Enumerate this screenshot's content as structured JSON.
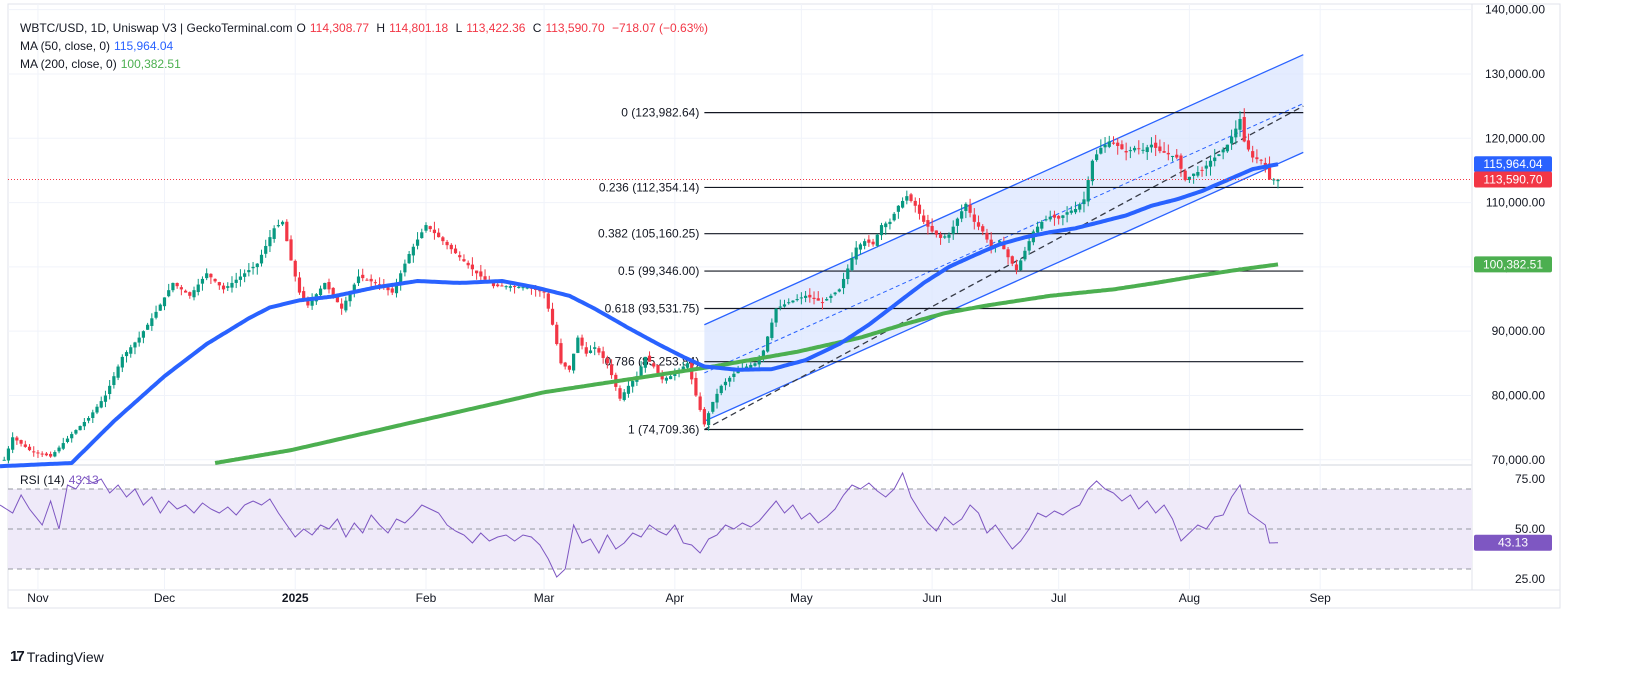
{
  "header": {
    "symbol": "WBTC/USD, 1D, Uniswap V3 | GeckoTerminal.com",
    "o_label": "O",
    "o_value": "114,308.77",
    "h_label": "H",
    "h_value": "114,801.18",
    "l_label": "L",
    "l_value": "113,422.36",
    "c_label": "C",
    "c_value": "113,590.70",
    "change": "−718.07 (−0.63%)",
    "ma50_label": "MA (50, close, 0)",
    "ma50_value": "115,964.04",
    "ma200_label": "MA (200, close, 0)",
    "ma200_value": "100,382.51",
    "rsi_label": "RSI (14)",
    "rsi_value": "43.13"
  },
  "footer": {
    "brand": "TradingView"
  },
  "colors": {
    "up": "#089981",
    "down": "#f23645",
    "ma50": "#2962ff",
    "ma200": "#4caf50",
    "rsi": "#7e57c2",
    "channel_fill": "#dbe5ff",
    "rsi_fill": "#efeaf9",
    "text": "#131722"
  },
  "chart_data": {
    "type": "candlestick",
    "price_axis": {
      "ticks": [
        "140,000.00",
        "130,000.00",
        "120,000.00",
        "110,000.00",
        "100,000.00",
        "90,000.00",
        "80,000.00",
        "70,000.00"
      ],
      "tick_values": [
        140000,
        130000,
        120000,
        110000,
        100000,
        90000,
        80000,
        70000
      ],
      "range": [
        69500,
        141500
      ]
    },
    "time_axis": {
      "labels": [
        "Nov",
        "Dec",
        "2025",
        "Feb",
        "Mar",
        "Apr",
        "May",
        "Jun",
        "Jul",
        "Aug",
        "Sep"
      ],
      "label_days": [
        0,
        30,
        61,
        92,
        120,
        151,
        181,
        212,
        242,
        273,
        304
      ],
      "range_days": [
        -9,
        340
      ]
    },
    "price_badges": {
      "ma50": "115,964.04",
      "last": "113,590.70",
      "ma200": "100,382.51"
    },
    "fibonacci": [
      {
        "level": "0",
        "label": "0 (123,982.64)",
        "value": 123982.64
      },
      {
        "level": "0.236",
        "label": "0.236 (112,354.14)",
        "value": 112354.14
      },
      {
        "level": "0.382",
        "label": "0.382 (105,160.25)",
        "value": 105160.25
      },
      {
        "level": "0.5",
        "label": "0.5 (99,346.00)",
        "value": 99346.0
      },
      {
        "level": "0.618",
        "label": "0.618 (93,531.75)",
        "value": 93531.75
      },
      {
        "level": "0.786",
        "label": "0.786 (85,253.84)",
        "value": 85253.84
      },
      {
        "level": "1",
        "label": "1 (74,709.36)",
        "value": 74709.36
      }
    ],
    "fib_start_day": 158,
    "fib_end_day": 300,
    "channel": {
      "upper": [
        [
          158,
          91000
        ],
        [
          300,
          133000
        ]
      ],
      "lower": [
        [
          158,
          76000
        ],
        [
          300,
          117800
        ]
      ],
      "mid": [
        [
          158,
          83500
        ],
        [
          300,
          125400
        ]
      ],
      "trend": [
        [
          158,
          74700
        ],
        [
          300,
          125000
        ]
      ]
    },
    "ohlc_anchors": [
      [
        -8,
        70000
      ],
      [
        -6,
        73500
      ],
      [
        -2,
        71500
      ],
      [
        3,
        70500
      ],
      [
        8,
        74000
      ],
      [
        12,
        76500
      ],
      [
        16,
        80000
      ],
      [
        20,
        86000
      ],
      [
        24,
        89000
      ],
      [
        28,
        93000
      ],
      [
        32,
        97500
      ],
      [
        36,
        95500
      ],
      [
        40,
        99000
      ],
      [
        44,
        96500
      ],
      [
        48,
        98500
      ],
      [
        52,
        100500
      ],
      [
        56,
        106000
      ],
      [
        58,
        107000
      ],
      [
        60,
        101000
      ],
      [
        62,
        96000
      ],
      [
        64,
        94000
      ],
      [
        68,
        97500
      ],
      [
        72,
        93500
      ],
      [
        76,
        98500
      ],
      [
        80,
        97500
      ],
      [
        84,
        96000
      ],
      [
        88,
        102000
      ],
      [
        92,
        106500
      ],
      [
        96,
        104000
      ],
      [
        100,
        101500
      ],
      [
        104,
        99000
      ],
      [
        108,
        97000
      ],
      [
        112,
        97000
      ],
      [
        116,
        96800
      ],
      [
        120,
        96000
      ],
      [
        122,
        91000
      ],
      [
        124,
        85000
      ],
      [
        126,
        84000
      ],
      [
        128,
        89000
      ],
      [
        130,
        86500
      ],
      [
        132,
        87500
      ],
      [
        135,
        85000
      ],
      [
        138,
        79500
      ],
      [
        140,
        81500
      ],
      [
        142,
        83000
      ],
      [
        144,
        86000
      ],
      [
        146,
        84500
      ],
      [
        148,
        82500
      ],
      [
        150,
        83000
      ],
      [
        154,
        85000
      ],
      [
        156,
        80000
      ],
      [
        158,
        75500
      ],
      [
        160,
        79000
      ],
      [
        162,
        81500
      ],
      [
        166,
        84000
      ],
      [
        170,
        85000
      ],
      [
        172,
        87000
      ],
      [
        175,
        93500
      ],
      [
        178,
        94500
      ],
      [
        182,
        95500
      ],
      [
        186,
        94500
      ],
      [
        190,
        96500
      ],
      [
        194,
        103000
      ],
      [
        196,
        104000
      ],
      [
        198,
        103500
      ],
      [
        200,
        106500
      ],
      [
        202,
        107000
      ],
      [
        204,
        109500
      ],
      [
        206,
        111000
      ],
      [
        208,
        109500
      ],
      [
        210,
        107000
      ],
      [
        212,
        105500
      ],
      [
        214,
        104500
      ],
      [
        216,
        105000
      ],
      [
        218,
        107500
      ],
      [
        220,
        109800
      ],
      [
        222,
        107000
      ],
      [
        224,
        105500
      ],
      [
        226,
        103000
      ],
      [
        228,
        104000
      ],
      [
        230,
        101500
      ],
      [
        232,
        99500
      ],
      [
        234,
        102500
      ],
      [
        236,
        105500
      ],
      [
        238,
        107000
      ],
      [
        240,
        107800
      ],
      [
        242,
        107500
      ],
      [
        244,
        108500
      ],
      [
        246,
        109000
      ],
      [
        248,
        110500
      ],
      [
        250,
        116500
      ],
      [
        252,
        118500
      ],
      [
        254,
        119500
      ],
      [
        256,
        118800
      ],
      [
        258,
        117800
      ],
      [
        260,
        118500
      ],
      [
        262,
        118200
      ],
      [
        264,
        119000
      ],
      [
        266,
        118000
      ],
      [
        268,
        117500
      ],
      [
        270,
        117000
      ],
      [
        272,
        113500
      ],
      [
        274,
        114500
      ],
      [
        276,
        115000
      ],
      [
        278,
        116500
      ],
      [
        280,
        117500
      ],
      [
        282,
        119000
      ],
      [
        284,
        121500
      ],
      [
        285,
        123000
      ],
      [
        286,
        119500
      ],
      [
        288,
        117000
      ],
      [
        290,
        116500
      ],
      [
        291,
        115800
      ],
      [
        292,
        113600
      ],
      [
        294,
        113590
      ]
    ],
    "ma50_anchors": [
      [
        -9,
        69000
      ],
      [
        8,
        69500
      ],
      [
        18,
        76000
      ],
      [
        30,
        83000
      ],
      [
        40,
        88000
      ],
      [
        50,
        92000
      ],
      [
        55,
        93700
      ],
      [
        62,
        94800
      ],
      [
        70,
        95400
      ],
      [
        80,
        96800
      ],
      [
        90,
        97800
      ],
      [
        100,
        97500
      ],
      [
        110,
        97800
      ],
      [
        118,
        96800
      ],
      [
        126,
        95500
      ],
      [
        132,
        93500
      ],
      [
        140,
        90500
      ],
      [
        147,
        88000
      ],
      [
        153,
        86000
      ],
      [
        158,
        84500
      ],
      [
        166,
        84000
      ],
      [
        174,
        84100
      ],
      [
        182,
        85500
      ],
      [
        190,
        88000
      ],
      [
        197,
        91000
      ],
      [
        204,
        94500
      ],
      [
        210,
        97500
      ],
      [
        216,
        100000
      ],
      [
        222,
        101800
      ],
      [
        228,
        103500
      ],
      [
        234,
        104600
      ],
      [
        240,
        105400
      ],
      [
        246,
        106000
      ],
      [
        252,
        107000
      ],
      [
        258,
        108000
      ],
      [
        264,
        109500
      ],
      [
        270,
        110500
      ],
      [
        276,
        111800
      ],
      [
        282,
        113500
      ],
      [
        288,
        115200
      ],
      [
        294,
        115964
      ]
    ],
    "ma200_anchors": [
      [
        42,
        69500
      ],
      [
        60,
        71500
      ],
      [
        80,
        74500
      ],
      [
        100,
        77500
      ],
      [
        120,
        80500
      ],
      [
        140,
        82500
      ],
      [
        160,
        84500
      ],
      [
        180,
        86800
      ],
      [
        195,
        89000
      ],
      [
        205,
        91000
      ],
      [
        215,
        92800
      ],
      [
        225,
        94000
      ],
      [
        240,
        95500
      ],
      [
        255,
        96500
      ],
      [
        265,
        97500
      ],
      [
        275,
        98600
      ],
      [
        285,
        99600
      ],
      [
        294,
        100382
      ]
    ],
    "rsi": {
      "ticks": [
        "75.00",
        "50.00",
        "25.00"
      ],
      "tick_values": [
        75,
        50,
        25
      ],
      "range": [
        22,
        82
      ],
      "upper_band": 70,
      "mid_band": 50,
      "lower_band": 30,
      "last": 43.13,
      "anchors": [
        [
          -9,
          62
        ],
        [
          -6,
          58
        ],
        [
          -4,
          67
        ],
        [
          -2,
          60
        ],
        [
          1,
          52
        ],
        [
          3,
          64
        ],
        [
          5,
          50
        ],
        [
          7,
          72
        ],
        [
          9,
          70
        ],
        [
          11,
          76
        ],
        [
          13,
          73
        ],
        [
          15,
          75
        ],
        [
          17,
          68
        ],
        [
          19,
          72
        ],
        [
          21,
          66
        ],
        [
          23,
          70
        ],
        [
          25,
          62
        ],
        [
          27,
          66
        ],
        [
          29,
          58
        ],
        [
          31,
          64
        ],
        [
          33,
          60
        ],
        [
          35,
          62
        ],
        [
          37,
          58
        ],
        [
          39,
          63
        ],
        [
          41,
          60
        ],
        [
          43,
          58
        ],
        [
          45,
          61
        ],
        [
          47,
          57
        ],
        [
          49,
          62
        ],
        [
          51,
          64
        ],
        [
          53,
          62
        ],
        [
          55,
          65
        ],
        [
          57,
          58
        ],
        [
          59,
          52
        ],
        [
          61,
          46
        ],
        [
          63,
          50
        ],
        [
          65,
          47
        ],
        [
          67,
          52
        ],
        [
          69,
          50
        ],
        [
          71,
          55
        ],
        [
          73,
          46
        ],
        [
          75,
          53
        ],
        [
          77,
          48
        ],
        [
          79,
          57
        ],
        [
          81,
          52
        ],
        [
          83,
          48
        ],
        [
          85,
          55
        ],
        [
          87,
          53
        ],
        [
          89,
          57
        ],
        [
          91,
          62
        ],
        [
          93,
          60
        ],
        [
          95,
          58
        ],
        [
          97,
          52
        ],
        [
          99,
          49
        ],
        [
          101,
          47
        ],
        [
          103,
          43
        ],
        [
          105,
          48
        ],
        [
          107,
          44
        ],
        [
          109,
          46
        ],
        [
          111,
          47
        ],
        [
          113,
          44
        ],
        [
          115,
          47
        ],
        [
          117,
          46
        ],
        [
          119,
          42
        ],
        [
          121,
          35
        ],
        [
          123,
          26
        ],
        [
          125,
          30
        ],
        [
          127,
          52
        ],
        [
          129,
          43
        ],
        [
          131,
          45
        ],
        [
          133,
          38
        ],
        [
          135,
          47
        ],
        [
          137,
          40
        ],
        [
          139,
          43
        ],
        [
          141,
          48
        ],
        [
          143,
          46
        ],
        [
          145,
          52
        ],
        [
          147,
          49
        ],
        [
          149,
          47
        ],
        [
          151,
          52
        ],
        [
          153,
          43
        ],
        [
          155,
          42
        ],
        [
          157,
          38
        ],
        [
          159,
          45
        ],
        [
          161,
          47
        ],
        [
          163,
          52
        ],
        [
          165,
          50
        ],
        [
          167,
          53
        ],
        [
          169,
          51
        ],
        [
          171,
          54
        ],
        [
          173,
          59
        ],
        [
          175,
          64
        ],
        [
          177,
          58
        ],
        [
          179,
          62
        ],
        [
          181,
          55
        ],
        [
          183,
          58
        ],
        [
          185,
          53
        ],
        [
          187,
          56
        ],
        [
          189,
          60
        ],
        [
          191,
          67
        ],
        [
          193,
          72
        ],
        [
          195,
          70
        ],
        [
          197,
          73
        ],
        [
          199,
          69
        ],
        [
          201,
          66
        ],
        [
          203,
          70
        ],
        [
          205,
          78
        ],
        [
          207,
          66
        ],
        [
          209,
          59
        ],
        [
          211,
          53
        ],
        [
          213,
          49
        ],
        [
          215,
          56
        ],
        [
          217,
          52
        ],
        [
          219,
          55
        ],
        [
          221,
          62
        ],
        [
          223,
          58
        ],
        [
          225,
          48
        ],
        [
          227,
          52
        ],
        [
          229,
          46
        ],
        [
          231,
          40
        ],
        [
          233,
          44
        ],
        [
          235,
          50
        ],
        [
          237,
          58
        ],
        [
          239,
          56
        ],
        [
          241,
          59
        ],
        [
          243,
          57
        ],
        [
          245,
          60
        ],
        [
          247,
          62
        ],
        [
          249,
          70
        ],
        [
          251,
          74
        ],
        [
          253,
          70
        ],
        [
          255,
          68
        ],
        [
          257,
          64
        ],
        [
          259,
          67
        ],
        [
          261,
          60
        ],
        [
          263,
          64
        ],
        [
          265,
          58
        ],
        [
          267,
          62
        ],
        [
          269,
          55
        ],
        [
          271,
          44
        ],
        [
          273,
          48
        ],
        [
          275,
          52
        ],
        [
          277,
          50
        ],
        [
          279,
          56
        ],
        [
          281,
          57
        ],
        [
          283,
          66
        ],
        [
          285,
          72
        ],
        [
          287,
          58
        ],
        [
          289,
          55
        ],
        [
          291,
          52
        ],
        [
          292,
          43
        ],
        [
          294,
          43.13
        ]
      ]
    }
  }
}
